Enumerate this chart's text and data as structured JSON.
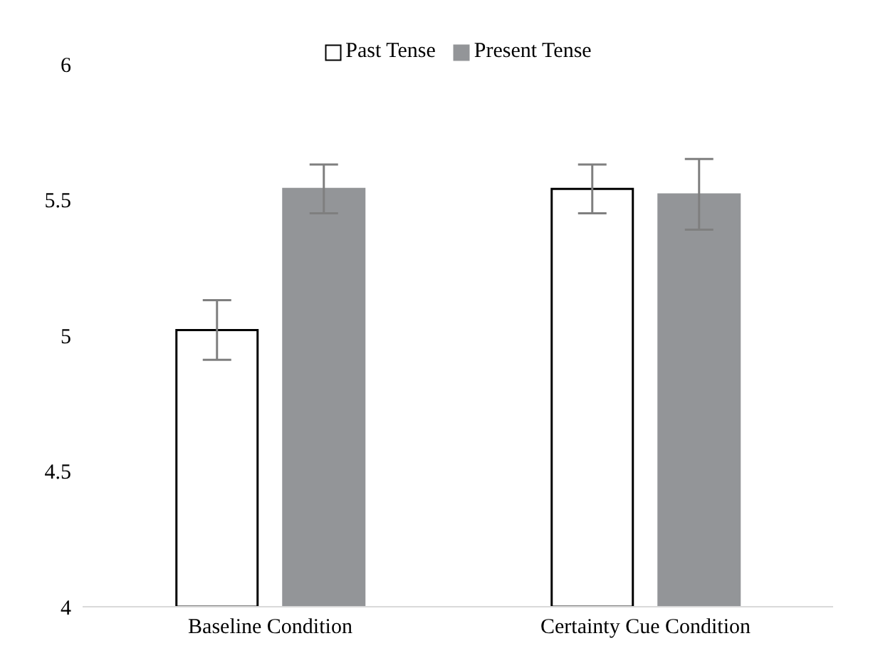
{
  "chart_data": {
    "type": "bar",
    "categories": [
      "Baseline Condition",
      "Certainty Cue Condition"
    ],
    "series": [
      {
        "name": "Past Tense",
        "color": "#ffffff",
        "values": [
          5.02,
          5.54
        ],
        "errors": [
          0.11,
          0.09
        ]
      },
      {
        "name": "Present Tense",
        "color": "#939598",
        "values": [
          5.54,
          5.52
        ],
        "errors": [
          0.09,
          0.13
        ]
      }
    ],
    "ylim": [
      4,
      6
    ],
    "yticks": [
      4,
      4.5,
      5,
      5.5,
      6
    ],
    "legend": "top"
  }
}
